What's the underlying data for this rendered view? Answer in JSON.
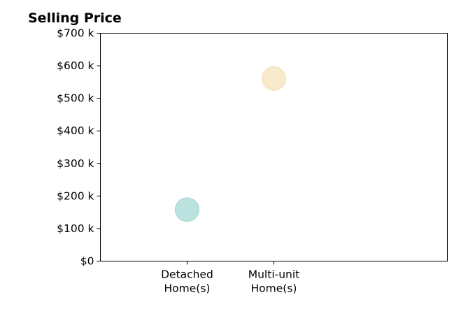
{
  "chart_data": {
    "type": "scatter",
    "title": "Selling Price",
    "xlabel": "",
    "ylabel": "",
    "categories": [
      [
        "Detached",
        "Home(s)"
      ],
      [
        "Multi-unit",
        "Home(s)"
      ]
    ],
    "values": [
      158000,
      561000
    ],
    "point_colors": [
      "#9fd6d2",
      "#f5dfb5"
    ],
    "ylim": [
      0,
      700000
    ],
    "y_ticks": [
      0,
      100000,
      200000,
      300000,
      400000,
      500000,
      600000,
      700000
    ],
    "y_tick_labels": [
      "$0",
      "$100 k",
      "$200 k",
      "$300 k",
      "$400 k",
      "$500 k",
      "$600 k",
      "$700 k"
    ],
    "grid": false,
    "legend": "none"
  }
}
